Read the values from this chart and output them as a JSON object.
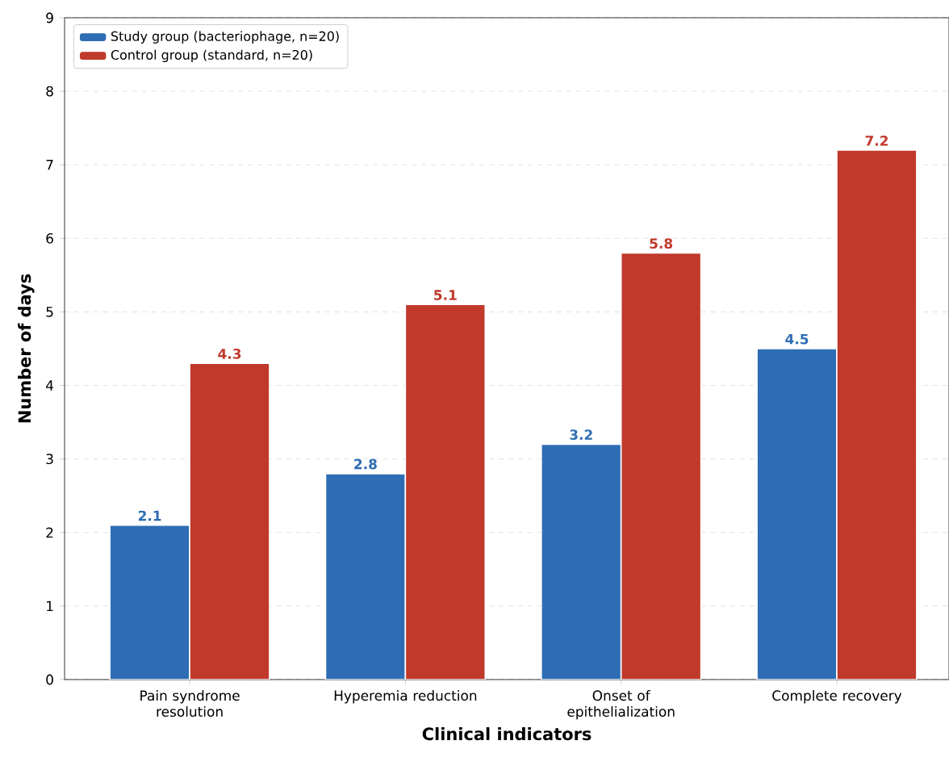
{
  "chart_data": {
    "type": "bar",
    "xlabel": "Clinical indicators",
    "ylabel": "Number of days",
    "categories": [
      "Pain syndrome resolution",
      "Hyperemia reduction",
      "Onset of epithelialization",
      "Complete recovery"
    ],
    "series": [
      {
        "name": "Study group (bacteriophage, n=20)",
        "color": "#2e6db4",
        "values": [
          2.1,
          2.8,
          3.2,
          4.5
        ]
      },
      {
        "name": "Control group (standard, n=20)",
        "color": "#c0392b",
        "values": [
          4.3,
          5.1,
          5.8,
          7.2
        ]
      }
    ],
    "ylim": [
      0,
      9
    ],
    "yticks": [
      0,
      1,
      2,
      3,
      4,
      5,
      6,
      7,
      8,
      9
    ],
    "grid": "y",
    "legend": "top left",
    "data_labels": true
  }
}
